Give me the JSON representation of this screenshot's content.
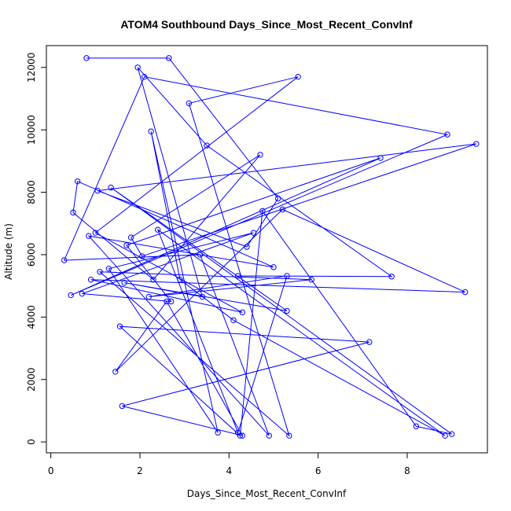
{
  "chart_data": {
    "type": "scatter",
    "connected": true,
    "title": "ATOM4 Southbound Days_Since_Most_Recent_ConvInf",
    "xlabel": "Days_Since_Most_Recent_ConvInf",
    "ylabel": "Altitude (m)",
    "xlim": [
      -0.1,
      9.8
    ],
    "ylim": [
      -350,
      12700
    ],
    "xticks": [
      0,
      2,
      4,
      6,
      8
    ],
    "yticks": [
      0,
      2000,
      4000,
      6000,
      8000,
      10000,
      12000
    ],
    "grid": false,
    "legend": "none",
    "series_color": "#0000ff",
    "series": [
      {
        "x": [
          0.8,
          2.65,
          5.1,
          4.4,
          1.05,
          9.55,
          2.05,
          1.8,
          4.7,
          2.3,
          0.5,
          0.6,
          5.0,
          0.85,
          4.9,
          3.35,
          0.3,
          2.1,
          8.9,
          0.45,
          7.4,
          1.7,
          2.7,
          0.7,
          4.55,
          1.3,
          3.75,
          2.25,
          2.9,
          4.1,
          8.85,
          2.4,
          4.2,
          5.3,
          2.2,
          5.85,
          1.1,
          5.35,
          3.1,
          5.55,
          1.0,
          4.3,
          0.9,
          9.3,
          5.2,
          1.45,
          2.6,
          4.3,
          1.6,
          7.15,
          1.55,
          4.25,
          4.75,
          8.2,
          9.0,
          1.35,
          5.3,
          1.65,
          3.4,
          1.95,
          3.5,
          7.65,
          4.2
        ],
        "y": [
          12300,
          12300,
          7800,
          6250,
          8050,
          9550,
          5950,
          6550,
          9200,
          5200,
          7350,
          8350,
          5600,
          6600,
          200,
          6000,
          5820,
          11700,
          9850,
          4700,
          9100,
          6300,
          4500,
          4750,
          6700,
          5550,
          300,
          9950,
          5200,
          3900,
          200,
          6800,
          300,
          5320,
          4650,
          5200,
          5450,
          200,
          10850,
          11700,
          6700,
          4150,
          5200,
          4800,
          7450,
          2250,
          4500,
          200,
          1150,
          3200,
          3700,
          200,
          7400,
          500,
          250,
          8150,
          4200,
          5100,
          4650,
          12000,
          9500,
          5300,
          5320
        ]
      }
    ]
  }
}
